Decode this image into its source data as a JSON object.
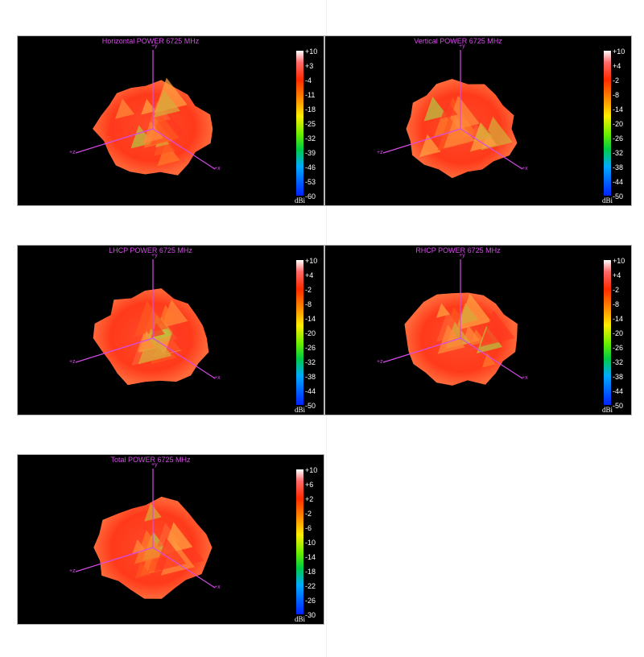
{
  "chart_data": [
    {
      "type": "heatmap",
      "title": "Horizontal POWER 6725  MHz",
      "colorbar": {
        "unit": "dBi",
        "ticks": [
          "+10",
          "+3",
          "-4",
          "-11",
          "-18",
          "-25",
          "-32",
          "-39",
          "-46",
          "-53",
          "-60"
        ],
        "range": [
          -60,
          10
        ]
      },
      "axes": [
        "+y",
        "+z",
        "+x"
      ]
    },
    {
      "type": "heatmap",
      "title": "Vertical POWER 6725  MHz",
      "colorbar": {
        "unit": "dBi",
        "ticks": [
          "+10",
          "+4",
          "-2",
          "-8",
          "-14",
          "-20",
          "-26",
          "-32",
          "-38",
          "-44",
          "-50"
        ],
        "range": [
          -50,
          10
        ]
      },
      "axes": [
        "+y",
        "+z",
        "+x"
      ]
    },
    {
      "type": "heatmap",
      "title": "LHCP POWER 6725  MHz",
      "colorbar": {
        "unit": "dBi",
        "ticks": [
          "+10",
          "+4",
          "-2",
          "-8",
          "-14",
          "-20",
          "-26",
          "-32",
          "-38",
          "-44",
          "-50"
        ],
        "range": [
          -50,
          10
        ]
      },
      "axes": [
        "+y",
        "+z",
        "+x"
      ]
    },
    {
      "type": "heatmap",
      "title": "RHCP POWER 6725  MHz",
      "colorbar": {
        "unit": "dBi",
        "ticks": [
          "+10",
          "+4",
          "-2",
          "-8",
          "-14",
          "-20",
          "-26",
          "-32",
          "-38",
          "-44",
          "-50"
        ],
        "range": [
          -50,
          10
        ]
      },
      "axes": [
        "+y",
        "+z",
        "+x"
      ]
    },
    {
      "type": "heatmap",
      "title": "Total POWER 6725  MHz",
      "colorbar": {
        "unit": "dBi",
        "ticks": [
          "+10",
          "+6",
          "+2",
          "-2",
          "-6",
          "-10",
          "-14",
          "-18",
          "-22",
          "-26",
          "-30"
        ],
        "range": [
          -30,
          10
        ]
      },
      "axes": [
        "+y",
        "+z",
        "+x"
      ]
    }
  ],
  "colors": {
    "title": "#d44ce6",
    "axis": "#d44ce6",
    "background": "#000000"
  }
}
